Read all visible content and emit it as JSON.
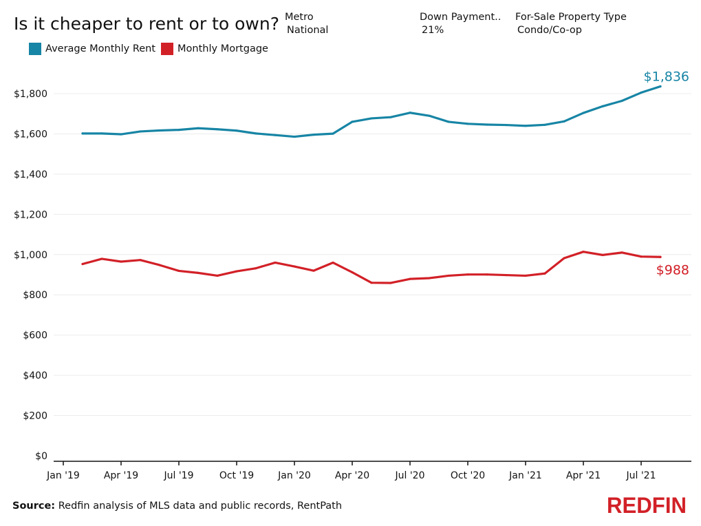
{
  "header": {
    "title": "Is it cheaper to rent or to own?",
    "filters": [
      {
        "label": "Metro",
        "value": "National"
      },
      {
        "label": "Down Payment..",
        "value": "21%"
      },
      {
        "label": "For-Sale Property Type",
        "value": "Condo/Co-op"
      }
    ]
  },
  "legend": [
    {
      "label": "Average Monthly Rent",
      "color": "#1785a5"
    },
    {
      "label": "Monthly Mortgage",
      "color": "#d22027"
    }
  ],
  "chart_data": {
    "type": "line",
    "title": "Is it cheaper to rent or to own?",
    "xlabel": "",
    "ylabel": "",
    "ylim": [
      0,
      2000
    ],
    "y_ticks": [
      0,
      200,
      400,
      600,
      800,
      1000,
      1200,
      1400,
      1600,
      1800
    ],
    "y_tick_labels": [
      "$0",
      "$200",
      "$400",
      "$600",
      "$800",
      "$1,000",
      "$1,200",
      "$1,400",
      "$1,600",
      "$1,800"
    ],
    "x_tick_labels": [
      "Jan '19",
      "Apr '19",
      "Jul '19",
      "Oct '19",
      "Jan '20",
      "Apr '20",
      "Jul '20",
      "Oct '20",
      "Jan '21",
      "Apr '21",
      "Jul '21"
    ],
    "x_tick_months": [
      "2019-01",
      "2019-04",
      "2019-07",
      "2019-10",
      "2020-01",
      "2020-04",
      "2020-07",
      "2020-10",
      "2021-01",
      "2021-04",
      "2021-07"
    ],
    "grid": "horizontal",
    "x": [
      "2019-02",
      "2019-03",
      "2019-04",
      "2019-05",
      "2019-06",
      "2019-07",
      "2019-08",
      "2019-09",
      "2019-10",
      "2019-11",
      "2019-12",
      "2020-01",
      "2020-02",
      "2020-03",
      "2020-04",
      "2020-05",
      "2020-06",
      "2020-07",
      "2020-08",
      "2020-09",
      "2020-10",
      "2020-11",
      "2020-12",
      "2021-01",
      "2021-02",
      "2021-03",
      "2021-04",
      "2021-05",
      "2021-06",
      "2021-07",
      "2021-08"
    ],
    "series": [
      {
        "name": "Average Monthly Rent",
        "color": "#1785a5",
        "values": [
          1602,
          1602,
          1598,
          1612,
          1617,
          1620,
          1628,
          1623,
          1616,
          1602,
          1594,
          1586,
          1596,
          1601,
          1660,
          1677,
          1683,
          1705,
          1690,
          1660,
          1650,
          1646,
          1644,
          1640,
          1645,
          1662,
          1704,
          1737,
          1764,
          1805,
          1836
        ],
        "end_label": "$1,836"
      },
      {
        "name": "Monthly Mortgage",
        "color": "#d22027",
        "values": [
          953,
          979,
          965,
          973,
          948,
          919,
          909,
          895,
          917,
          932,
          960,
          941,
          920,
          960,
          912,
          860,
          859,
          879,
          883,
          895,
          901,
          901,
          898,
          895,
          906,
          982,
          1014,
          998,
          1010,
          990,
          988
        ],
        "end_label": "$988"
      }
    ]
  },
  "footer": {
    "source_label": "Source:",
    "source_text": "Redfin analysis of MLS data and public records, RentPath"
  },
  "logo": {
    "text": "REDFIN",
    "color": "#d22027"
  }
}
